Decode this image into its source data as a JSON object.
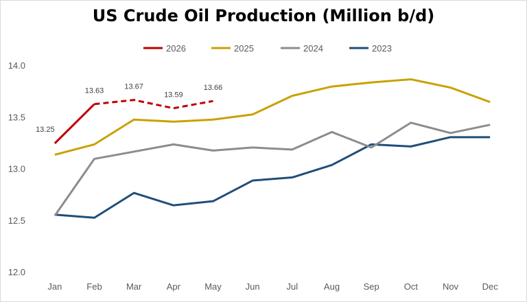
{
  "chart_data": {
    "type": "line",
    "title": "US Crude Oil Production (Million b/d)",
    "xlabel": "",
    "ylabel": "",
    "categories": [
      "Jan",
      "Feb",
      "Mar",
      "Apr",
      "May",
      "Jun",
      "Jul",
      "Aug",
      "Sep",
      "Oct",
      "Nov",
      "Dec"
    ],
    "ylim": [
      12.0,
      14.0
    ],
    "yticks": [
      "12.0",
      "12.5",
      "13.0",
      "13.5",
      "14.0"
    ],
    "grid": false,
    "legend_position": "top",
    "legend": [
      "2026",
      "2025",
      "2024",
      "2023"
    ],
    "series": [
      {
        "name": "2026",
        "color": "#c00000",
        "values": [
          13.25,
          13.63,
          13.67,
          13.59,
          13.66,
          null,
          null,
          null,
          null,
          null,
          null,
          null
        ],
        "solid_through": 1,
        "data_labels": [
          "13.25",
          "13.63",
          "13.67",
          "13.59",
          "13.66"
        ]
      },
      {
        "name": "2025",
        "color": "#c9a100",
        "values": [
          13.14,
          13.24,
          13.48,
          13.46,
          13.48,
          13.53,
          13.71,
          13.8,
          13.84,
          13.87,
          13.79,
          13.65
        ]
      },
      {
        "name": "2024",
        "color": "#8c8c8c",
        "values": [
          12.55,
          13.1,
          13.17,
          13.24,
          13.18,
          13.21,
          13.19,
          13.36,
          13.21,
          13.45,
          13.35,
          13.43
        ]
      },
      {
        "name": "2023",
        "color": "#1f4e79",
        "values": [
          12.56,
          12.53,
          12.77,
          12.65,
          12.69,
          12.89,
          12.92,
          13.04,
          13.24,
          13.22,
          13.31,
          13.31
        ]
      }
    ]
  }
}
